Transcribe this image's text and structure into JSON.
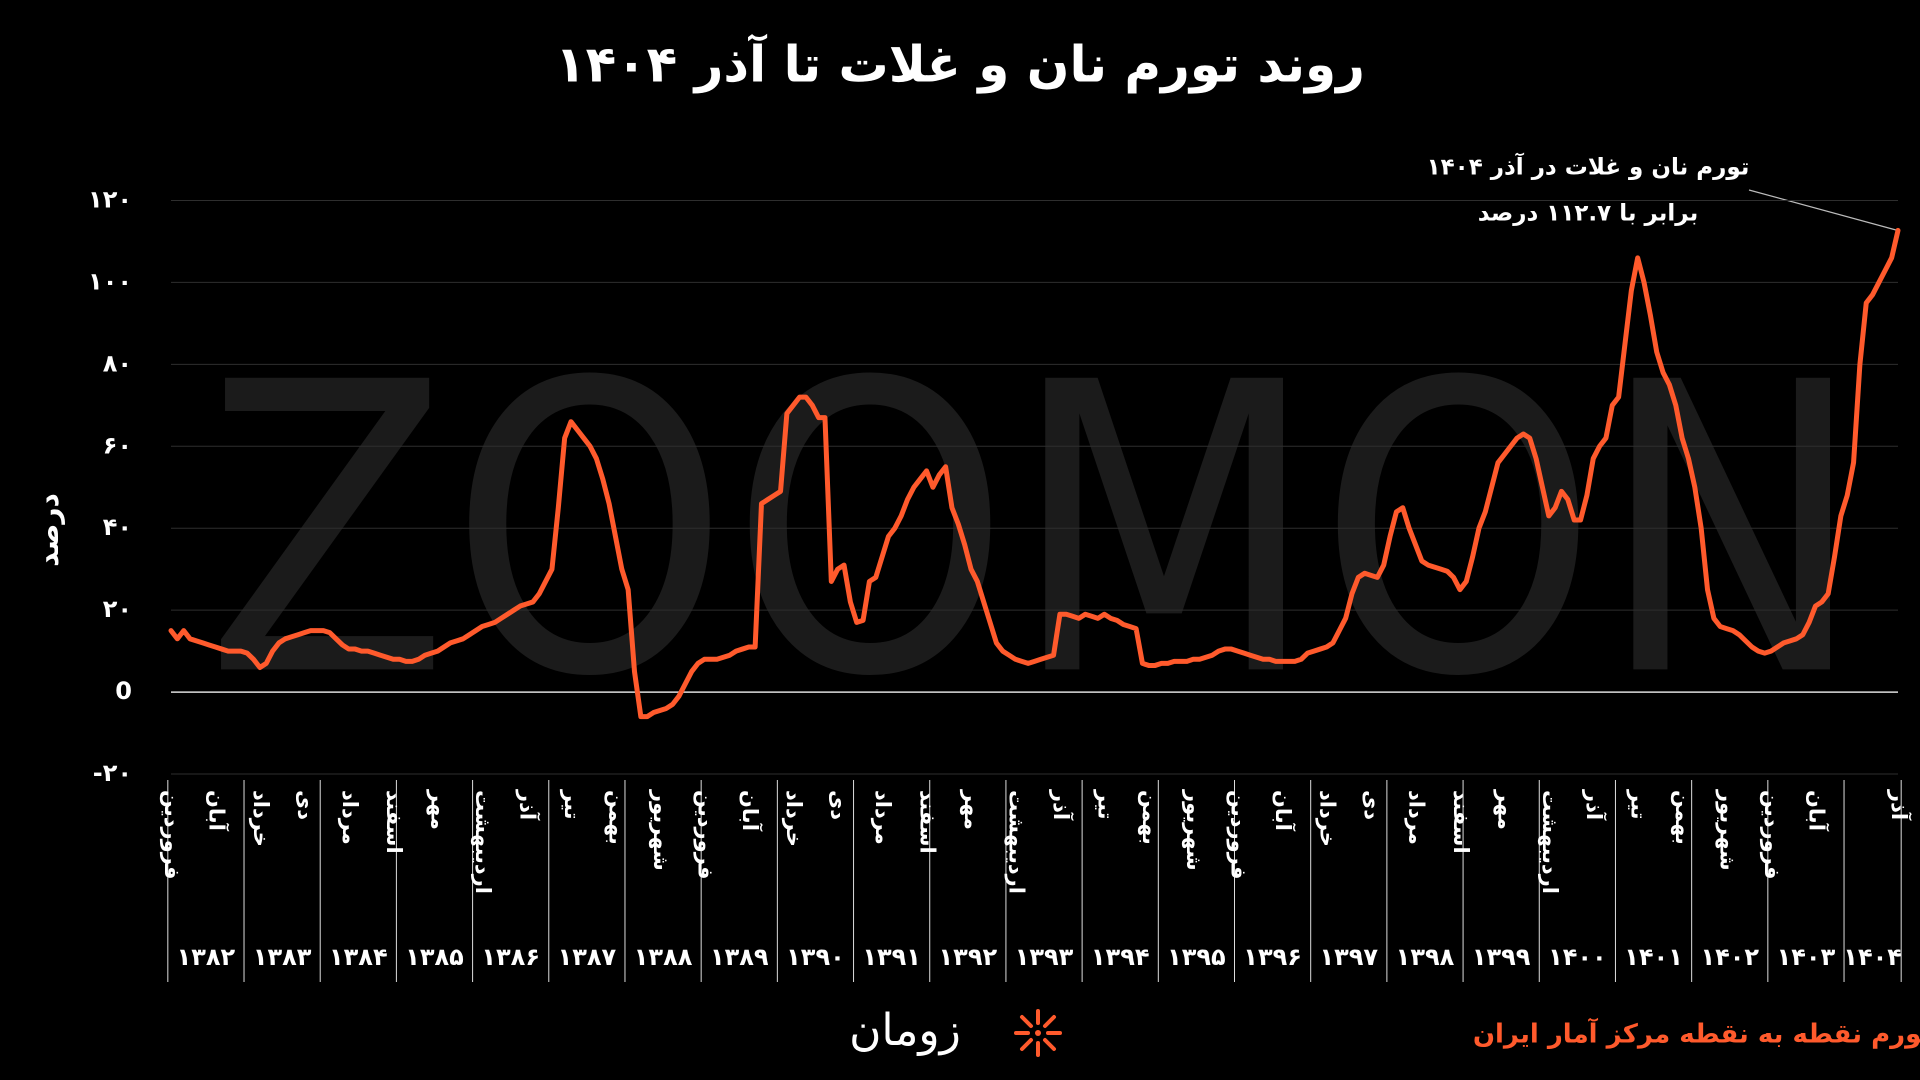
{
  "chart_data": {
    "type": "line",
    "title": "روند تورم نان و غلات تا آذر ۱۴۰۴",
    "y_label": "درصد",
    "watermark": "ZOOMON",
    "annotation": [
      "تورم نان و غلات در آذر ۱۴۰۴",
      "برابر با ۱۱۲.۷ درصد"
    ],
    "source": "تورم نقطه به نقطه مرکز آمار ایران",
    "brand": "زومان",
    "color": "#ff5a2c",
    "grid": true,
    "ylim": [
      -20,
      125
    ],
    "yticks": [
      {
        "value": -20,
        "label": "-۲۰"
      },
      0,
      {
        "value": 20,
        "label": "۲۰"
      },
      {
        "value": 40,
        "label": "۴۰"
      },
      {
        "value": 60,
        "label": "۶۰"
      },
      {
        "value": 80,
        "label": "۸۰"
      },
      {
        "value": 100,
        "label": "۱۰۰"
      },
      {
        "value": 120,
        "label": "۱۲۰"
      }
    ],
    "years": [
      "۱۳۸۲",
      "۱۳۸۳",
      "۱۳۸۴",
      "۱۳۸۵",
      "۱۳۸۶",
      "۱۳۸۷",
      "۱۳۸۸",
      "۱۳۸۹",
      "۱۳۹۰",
      "۱۳۹۱",
      "۱۳۹۲",
      "۱۳۹۳",
      "۱۳۹۴",
      "۱۳۹۵",
      "۱۳۹۶",
      "۱۳۹۷",
      "۱۳۹۸",
      "۱۳۹۹",
      "۱۴۰۰",
      "۱۴۰۱",
      "۱۴۰۲",
      "۱۴۰۳",
      "۱۴۰۴"
    ],
    "categories": [
      "فروردین",
      null,
      null,
      null,
      null,
      null,
      null,
      "آبان",
      null,
      null,
      null,
      null,
      null,
      null,
      "خرداد",
      null,
      null,
      null,
      null,
      null,
      null,
      "دی",
      null,
      null,
      null,
      null,
      null,
      null,
      "مرداد",
      null,
      null,
      null,
      null,
      null,
      null,
      "اسفند",
      null,
      null,
      null,
      null,
      null,
      null,
      "مهر",
      null,
      null,
      null,
      null,
      null,
      null,
      "اردیبهشت",
      null,
      null,
      null,
      null,
      null,
      null,
      "آذر",
      null,
      null,
      null,
      null,
      null,
      null,
      "تیر",
      null,
      null,
      null,
      null,
      null,
      null,
      "بهمن",
      null,
      null,
      null,
      null,
      null,
      null,
      "شهریور",
      null,
      null,
      null,
      null,
      null,
      null,
      "فروردین",
      null,
      null,
      null,
      null,
      null,
      null,
      "آبان",
      null,
      null,
      null,
      null,
      null,
      null,
      "خرداد",
      null,
      null,
      null,
      null,
      null,
      null,
      "دی",
      null,
      null,
      null,
      null,
      null,
      null,
      "مرداد",
      null,
      null,
      null,
      null,
      null,
      null,
      "اسفند",
      null,
      null,
      null,
      null,
      null,
      null,
      "مهر",
      null,
      null,
      null,
      null,
      null,
      null,
      "اردیبهشت",
      null,
      null,
      null,
      null,
      null,
      null,
      "آذر",
      null,
      null,
      null,
      null,
      null,
      null,
      "تیر",
      null,
      null,
      null,
      null,
      null,
      null,
      "بهمن",
      null,
      null,
      null,
      null,
      null,
      null,
      "شهریور",
      null,
      null,
      null,
      null,
      null,
      null,
      "فروردین",
      null,
      null,
      null,
      null,
      null,
      null,
      "آبان",
      null,
      null,
      null,
      null,
      null,
      null,
      "خرداد",
      null,
      null,
      null,
      null,
      null,
      null,
      "دی",
      null,
      null,
      null,
      null,
      null,
      null,
      "مرداد",
      null,
      null,
      null,
      null,
      null,
      null,
      "اسفند",
      null,
      null,
      null,
      null,
      null,
      null,
      "مهر",
      null,
      null,
      null,
      null,
      null,
      null,
      "اردیبهشت",
      null,
      null,
      null,
      null,
      null,
      null,
      "آذر",
      null,
      null,
      null,
      null,
      null,
      null,
      "تیر",
      null,
      null,
      null,
      null,
      null,
      null,
      "بهمن",
      null,
      null,
      null,
      null,
      null,
      null,
      "شهریور",
      null,
      null,
      null,
      null,
      null,
      null,
      "فروردین",
      null,
      null,
      null,
      null,
      null,
      null,
      "آبان",
      null,
      null,
      null,
      null,
      null,
      null,
      null,
      null,
      null,
      null,
      null,
      null,
      "آذر"
    ],
    "values": [
      15,
      13,
      15,
      13,
      12.5,
      12,
      11.5,
      11,
      10.5,
      10,
      10,
      10,
      9.5,
      8,
      6,
      7,
      10,
      12,
      13,
      13.5,
      14,
      14.5,
      15,
      15,
      15,
      14.5,
      13,
      11.5,
      10.5,
      10.5,
      10,
      10,
      9.5,
      9,
      8.5,
      8,
      8,
      7.5,
      7.5,
      8,
      9,
      9.5,
      10,
      11,
      12,
      12.5,
      13,
      14,
      15,
      16,
      16.5,
      17,
      18,
      19,
      20,
      21,
      21.5,
      22,
      24,
      27,
      30,
      45,
      62,
      66,
      64,
      62,
      60,
      57,
      52,
      46,
      38,
      30,
      25,
      5,
      -6,
      -6,
      -5,
      -4.5,
      -4,
      -3,
      -1,
      2,
      5,
      7,
      8,
      8,
      8,
      8.5,
      9,
      10,
      10.5,
      11,
      11,
      46,
      47,
      48,
      49,
      68,
      70,
      72,
      72,
      70,
      67,
      67,
      27,
      30,
      31,
      22,
      17,
      17.5,
      27,
      28,
      33,
      38,
      40,
      43,
      47,
      50,
      52,
      54,
      50,
      53,
      55,
      45,
      41,
      36,
      30,
      27,
      22,
      17,
      12,
      10,
      9,
      8,
      7.5,
      7,
      7.5,
      8,
      8.5,
      9,
      19,
      19,
      18.5,
      18,
      19,
      18.5,
      18,
      19,
      18,
      17.5,
      16.5,
      16,
      15.5,
      7,
      6.5,
      6.5,
      7,
      7,
      7.5,
      7.5,
      7.5,
      8,
      8,
      8.5,
      9,
      10,
      10.5,
      10.5,
      10,
      9.5,
      9,
      8.5,
      8,
      8,
      7.5,
      7.5,
      7.5,
      7.5,
      8,
      9.5,
      10,
      10.5,
      11,
      12,
      15,
      18,
      24,
      28,
      29,
      28.5,
      28,
      31,
      38,
      44,
      45,
      40,
      36,
      32,
      31,
      30.5,
      30,
      29.5,
      28,
      25,
      27,
      33,
      40,
      44,
      50,
      56,
      58,
      60,
      62,
      63,
      62,
      57,
      50,
      43,
      45,
      49,
      47,
      42,
      42,
      48,
      57,
      60,
      62,
      70,
      72,
      85,
      98,
      106,
      100,
      92,
      83,
      78,
      75,
      70,
      62,
      57,
      50,
      40,
      25,
      18,
      16,
      15.5,
      15,
      14,
      12.5,
      11,
      10,
      9.5,
      10,
      11,
      12,
      12.5,
      13,
      14,
      17,
      21,
      22,
      24,
      33,
      43,
      48,
      56,
      80,
      95,
      97,
      100,
      103,
      106,
      112.7
    ]
  }
}
